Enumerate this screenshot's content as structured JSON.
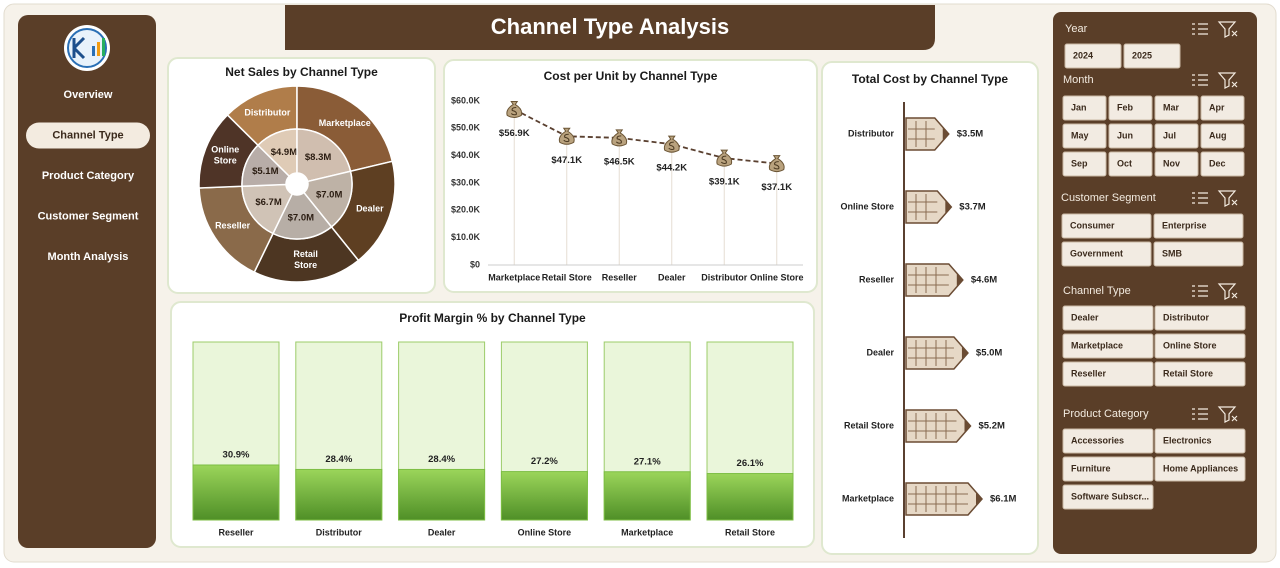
{
  "header": {
    "title": "Channel Type Analysis"
  },
  "nav": {
    "items": [
      "Overview",
      "Channel Type",
      "Product Category",
      "Customer Segment",
      "Month Analysis"
    ],
    "active": 1
  },
  "slicers": [
    {
      "title": "Year",
      "items": [
        "2024",
        "2025"
      ]
    },
    {
      "title": "Month",
      "items": [
        "Jan",
        "Feb",
        "Mar",
        "Apr",
        "May",
        "Jun",
        "Jul",
        "Aug",
        "Sep",
        "Oct",
        "Nov",
        "Dec"
      ]
    },
    {
      "title": "Customer Segment",
      "items": [
        "Consumer",
        "Enterprise",
        "Government",
        "SMB"
      ]
    },
    {
      "title": "Channel Type",
      "items": [
        "Dealer",
        "Distributor",
        "Marketplace",
        "Online Store",
        "Reseller",
        "Retail Store"
      ]
    },
    {
      "title": "Product Category",
      "items": [
        "Accessories",
        "Electronics",
        "Furniture",
        "Home Appliances",
        "Software Subscr..."
      ]
    }
  ],
  "chart_data": [
    {
      "type": "pie",
      "title": "Net Sales by Channel Type",
      "categories": [
        "Distributor",
        "Marketplace",
        "Dealer",
        "Retail Store",
        "Reseller",
        "Online Store"
      ],
      "values": [
        4.9,
        8.3,
        7.0,
        7.0,
        6.7,
        5.1
      ],
      "value_labels": [
        "$4.9M",
        "$8.3M",
        "$7.0M",
        "$7.0M",
        "$6.7M",
        "$5.1M"
      ],
      "colors": [
        "#b07d4a",
        "#8a5c37",
        "#5e3f22",
        "#4d3622",
        "#8a6a4a",
        "#4f3427"
      ]
    },
    {
      "type": "line",
      "title": "Cost per Unit by Channel Type",
      "categories": [
        "Marketplace",
        "Retail Store",
        "Reseller",
        "Dealer",
        "Distributor",
        "Online Store"
      ],
      "values": [
        56.9,
        47.1,
        46.5,
        44.2,
        39.1,
        37.1
      ],
      "value_labels": [
        "$56.9K",
        "$47.1K",
        "$46.5K",
        "$44.2K",
        "$39.1K",
        "$37.1K"
      ],
      "color": "#5a4030",
      "ylim": [
        0,
        60
      ],
      "yticks": [
        {
          "value": 0,
          "label": "$0"
        },
        {
          "value": 10,
          "label": "$10.0K"
        },
        {
          "value": 20,
          "label": "$20.0K"
        },
        {
          "value": 30,
          "label": "$30.0K"
        },
        {
          "value": 40,
          "label": "$40.0K"
        },
        {
          "value": 50,
          "label": "$50.0K"
        },
        {
          "value": 60,
          "label": "$60.0K"
        }
      ]
    },
    {
      "type": "bar",
      "orientation": "horizontal",
      "title": "Total Cost by Channel Type",
      "categories": [
        "Distributor",
        "Online Store",
        "Reseller",
        "Dealer",
        "Retail Store",
        "Marketplace"
      ],
      "values": [
        3.5,
        3.7,
        4.6,
        5.0,
        5.2,
        6.1
      ],
      "value_labels": [
        "$3.5M",
        "$3.7M",
        "$4.6M",
        "$5.0M",
        "$5.2M",
        "$6.1M"
      ],
      "color": "#e6d8c6"
    },
    {
      "type": "bar",
      "title": "Profit Margin % by Channel Type",
      "categories": [
        "Reseller",
        "Distributor",
        "Dealer",
        "Online Store",
        "Marketplace",
        "Retail Store"
      ],
      "values": [
        30.9,
        28.4,
        28.4,
        27.2,
        27.1,
        26.1
      ],
      "value_labels": [
        "30.9%",
        "28.4%",
        "28.4%",
        "27.2%",
        "27.1%",
        "26.1%"
      ],
      "color": "#7cbd43",
      "ylim": [
        0,
        100
      ]
    }
  ]
}
